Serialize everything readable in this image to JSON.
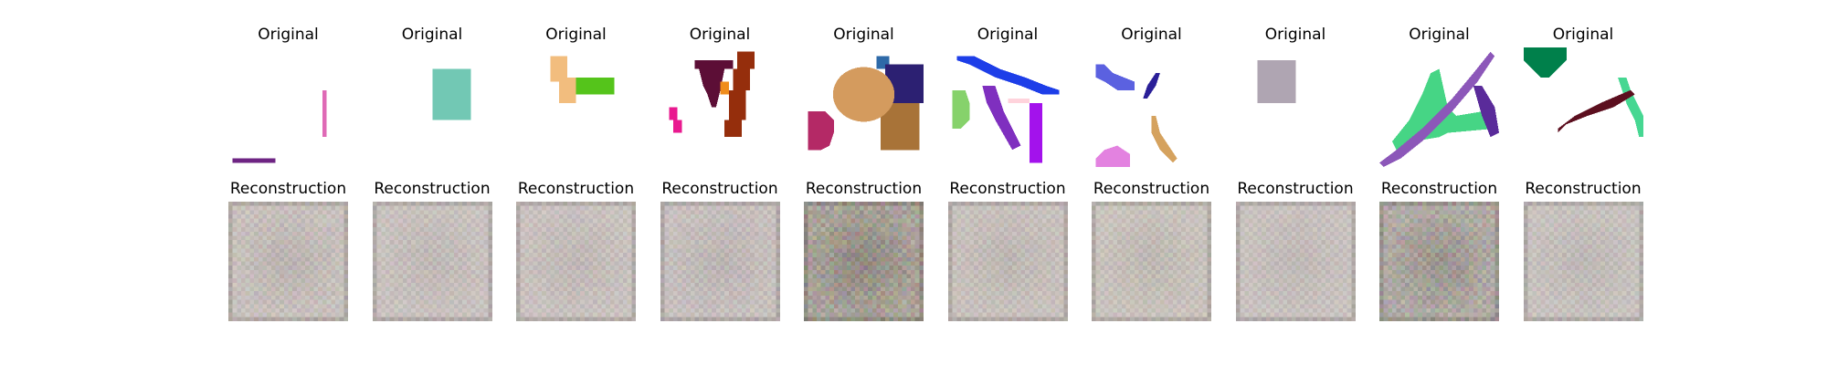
{
  "chart_data": {
    "type": "image-grid",
    "rows": [
      "original",
      "reconstruction"
    ],
    "labels": {
      "original": "Original",
      "reconstruction": "Reconstruction"
    },
    "columns": [
      {
        "index": 1,
        "original_shapes": [
          {
            "kind": "rect",
            "color": "#df6ab6",
            "box": [
              22,
              10,
              23,
              21
            ]
          },
          {
            "kind": "rect",
            "color": "#6e2483",
            "box": [
              1,
              26,
              11,
              27
            ]
          }
        ],
        "recon_tone": "#c8c1bd",
        "recon_noise": 0.25
      },
      {
        "index": 2,
        "original_shapes": [
          {
            "kind": "rect",
            "color": "#72c8b4",
            "box": [
              14,
              5,
              23,
              17
            ]
          }
        ],
        "recon_tone": "#c9c2bf",
        "recon_noise": 0.2
      },
      {
        "index": 3,
        "original_shapes": [
          {
            "kind": "poly",
            "color": "#f2bd7e",
            "pts": [
              [
                8,
                2
              ],
              [
                12,
                2
              ],
              [
                12,
                7
              ],
              [
                14,
                7
              ],
              [
                14,
                13
              ],
              [
                10,
                13
              ],
              [
                10,
                8
              ],
              [
                8,
                8
              ]
            ]
          },
          {
            "kind": "rect",
            "color": "#55c41b",
            "box": [
              14,
              7,
              23,
              11
            ]
          }
        ],
        "recon_tone": "#c9c2bf",
        "recon_noise": 0.2
      },
      {
        "index": 4,
        "original_shapes": [
          {
            "kind": "poly",
            "color": "#5c0e36",
            "pts": [
              [
                8,
                3
              ],
              [
                17,
                3
              ],
              [
                17,
                5
              ],
              [
                15,
                5
              ],
              [
                14,
                10
              ],
              [
                13,
                14
              ],
              [
                12,
                14
              ],
              [
                11,
                11
              ],
              [
                10,
                9
              ],
              [
                9,
                5
              ],
              [
                8,
                5
              ]
            ]
          },
          {
            "kind": "poly",
            "color": "#952e0c",
            "pts": [
              [
                18,
                1
              ],
              [
                22,
                1
              ],
              [
                22,
                5
              ],
              [
                21,
                5
              ],
              [
                21,
                10
              ],
              [
                20,
                10
              ],
              [
                20,
                17
              ],
              [
                19,
                17
              ],
              [
                19,
                21
              ],
              [
                15,
                21
              ],
              [
                15,
                17
              ],
              [
                16,
                17
              ],
              [
                16,
                10
              ],
              [
                17,
                10
              ],
              [
                17,
                5
              ],
              [
                18,
                5
              ]
            ]
          },
          {
            "kind": "rect",
            "color": "#f08d1c",
            "box": [
              14,
              8,
              16,
              11
            ]
          },
          {
            "kind": "poly",
            "color": "#e9198f",
            "pts": [
              [
                2,
                14
              ],
              [
                4,
                14
              ],
              [
                4,
                17
              ],
              [
                5,
                17
              ],
              [
                5,
                20
              ],
              [
                3,
                20
              ],
              [
                3,
                17
              ],
              [
                2,
                17
              ]
            ]
          }
        ],
        "recon_tone": "#c7c0be",
        "recon_noise": 0.22
      },
      {
        "index": 5,
        "original_shapes": [
          {
            "kind": "rect",
            "color": "#2e6aa8",
            "box": [
              17,
              2,
              20,
              5
            ]
          },
          {
            "kind": "rect",
            "color": "#2c2072",
            "box": [
              19,
              4,
              28,
              13
            ]
          },
          {
            "kind": "rect",
            "color": "#a87338",
            "box": [
              18,
              13,
              27,
              24
            ]
          },
          {
            "kind": "ellipse",
            "color": "#d49b5e",
            "c": [
              14,
              11
            ],
            "r": [
              7.2,
              6.4
            ]
          },
          {
            "kind": "poly",
            "color": "#b42966",
            "pts": [
              [
                1,
                15
              ],
              [
                5,
                15
              ],
              [
                7,
                17
              ],
              [
                7,
                20
              ],
              [
                6,
                23
              ],
              [
                4,
                24
              ],
              [
                1,
                24
              ]
            ]
          }
        ],
        "recon_tone": "#a9a39a",
        "recon_noise": 0.5
      },
      {
        "index": 6,
        "original_shapes": [
          {
            "kind": "poly",
            "color": "#1d3ee8",
            "pts": [
              [
                2,
                2
              ],
              [
                6,
                2
              ],
              [
                12,
                5
              ],
              [
                18,
                7
              ],
              [
                23,
                9
              ],
              [
                26,
                10
              ],
              [
                26,
                11
              ],
              [
                22,
                11
              ],
              [
                17,
                9
              ],
              [
                11,
                7
              ],
              [
                5,
                4
              ],
              [
                2,
                3
              ]
            ]
          },
          {
            "kind": "poly",
            "color": "#7f2fbf",
            "pts": [
              [
                8,
                9
              ],
              [
                11,
                9
              ],
              [
                13,
                15
              ],
              [
                17,
                23
              ],
              [
                15,
                24
              ],
              [
                11,
                17
              ],
              [
                9,
                13
              ]
            ]
          },
          {
            "kind": "rect",
            "color": "#ffd3dc",
            "box": [
              14,
              12,
              19,
              13
            ]
          },
          {
            "kind": "rect",
            "color": "#a312ec",
            "box": [
              19,
              13,
              22,
              27
            ]
          },
          {
            "kind": "poly",
            "color": "#86d26b",
            "pts": [
              [
                1,
                10
              ],
              [
                4,
                10
              ],
              [
                5,
                13
              ],
              [
                5,
                17
              ],
              [
                3,
                19
              ],
              [
                1,
                19
              ]
            ]
          }
        ],
        "recon_tone": "#c8c1bd",
        "recon_noise": 0.2
      },
      {
        "index": 7,
        "original_shapes": [
          {
            "kind": "poly",
            "color": "#5b61e0",
            "pts": [
              [
                1,
                4
              ],
              [
                3,
                4
              ],
              [
                5,
                6
              ],
              [
                10,
                8
              ],
              [
                10,
                10
              ],
              [
                6,
                10
              ],
              [
                3,
                8
              ],
              [
                1,
                7
              ]
            ]
          },
          {
            "kind": "poly",
            "color": "#2a1f98",
            "pts": [
              [
                15,
                6
              ],
              [
                16,
                6
              ],
              [
                15,
                9
              ],
              [
                13,
                12
              ],
              [
                12,
                12
              ],
              [
                13,
                9
              ]
            ]
          },
          {
            "kind": "poly",
            "color": "#d5a25e",
            "pts": [
              [
                14,
                16
              ],
              [
                15,
                16
              ],
              [
                16,
                20
              ],
              [
                18,
                23
              ],
              [
                20,
                26
              ],
              [
                19,
                27
              ],
              [
                16,
                24
              ],
              [
                14,
                20
              ]
            ]
          },
          {
            "kind": "poly",
            "color": "#e382e0",
            "pts": [
              [
                3,
                24
              ],
              [
                6,
                23
              ],
              [
                9,
                25
              ],
              [
                9,
                28
              ],
              [
                1,
                28
              ],
              [
                1,
                26
              ]
            ]
          }
        ],
        "recon_tone": "#c9c3bd",
        "recon_noise": 0.2
      },
      {
        "index": 8,
        "original_shapes": [
          {
            "kind": "rect",
            "color": "#afa5b2",
            "box": [
              5,
              3,
              14,
              13
            ]
          }
        ],
        "recon_tone": "#c9c2bf",
        "recon_noise": 0.18
      },
      {
        "index": 9,
        "original_shapes": [
          {
            "kind": "poly",
            "color": "#46d585",
            "pts": [
              [
                12,
                6
              ],
              [
                14,
                5
              ],
              [
                16,
                14
              ],
              [
                18,
                16
              ],
              [
                24,
                15
              ],
              [
                27,
                16
              ],
              [
                27,
                19
              ],
              [
                16,
                20
              ],
              [
                14,
                21
              ],
              [
                8,
                22
              ],
              [
                4,
                24
              ],
              [
                3,
                22
              ],
              [
                7,
                17
              ],
              [
                10,
                11
              ]
            ]
          },
          {
            "kind": "poly",
            "color": "#8c57b9",
            "pts": [
              [
                26,
                1
              ],
              [
                27,
                2
              ],
              [
                23,
                8
              ],
              [
                17,
                15
              ],
              [
                10,
                22
              ],
              [
                5,
                26
              ],
              [
                1,
                28
              ],
              [
                0,
                27
              ],
              [
                4,
                24
              ],
              [
                10,
                19
              ],
              [
                17,
                12
              ],
              [
                22,
                6
              ]
            ]
          },
          {
            "kind": "poly",
            "color": "#5a2b9a",
            "pts": [
              [
                22,
                9
              ],
              [
                24,
                9
              ],
              [
                27,
                14
              ],
              [
                28,
                20
              ],
              [
                26,
                21
              ],
              [
                24,
                16
              ]
            ]
          }
        ],
        "recon_tone": "#b1aba5",
        "recon_noise": 0.45
      },
      {
        "index": 10,
        "original_shapes": [
          {
            "kind": "poly",
            "color": "#00804b",
            "pts": [
              [
                0,
                0
              ],
              [
                10,
                0
              ],
              [
                10,
                3
              ],
              [
                8,
                5
              ],
              [
                6,
                7
              ],
              [
                4,
                7
              ],
              [
                2,
                5
              ],
              [
                0,
                3
              ]
            ]
          },
          {
            "kind": "poly",
            "color": "#46d792",
            "pts": [
              [
                22,
                7
              ],
              [
                24,
                7
              ],
              [
                25,
                10
              ],
              [
                27,
                14
              ],
              [
                29,
                18
              ],
              [
                29,
                21
              ],
              [
                27,
                21
              ],
              [
                26,
                17
              ],
              [
                24,
                13
              ],
              [
                23,
                10
              ]
            ]
          },
          {
            "kind": "poly",
            "color": "#5c0f1f",
            "pts": [
              [
                25,
                10
              ],
              [
                26,
                11
              ],
              [
                21,
                14
              ],
              [
                15,
                16
              ],
              [
                10,
                18
              ],
              [
                8,
                20
              ],
              [
                8,
                19
              ],
              [
                12,
                16
              ],
              [
                18,
                13
              ]
            ]
          }
        ],
        "recon_tone": "#c8c2bf",
        "recon_noise": 0.2
      }
    ]
  }
}
